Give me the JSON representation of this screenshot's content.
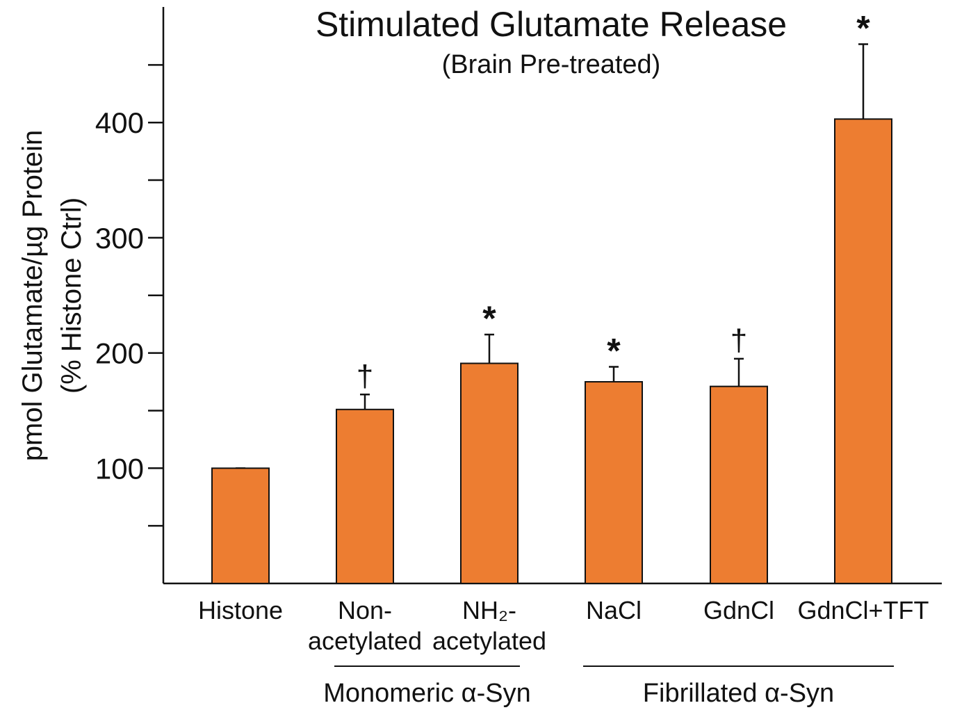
{
  "chart_data": {
    "type": "bar",
    "title": "Stimulated Glutamate Release",
    "subtitle": "(Brain Pre-treated)",
    "ylabel_line1": "pmol Glutamate/µg Protein",
    "ylabel_line2": "(% Histone Ctrl)",
    "ylim": [
      0,
      500
    ],
    "yticks_major": [
      100,
      200,
      300,
      400
    ],
    "yticks_minor": [
      50,
      150,
      250,
      350,
      450
    ],
    "categories": [
      {
        "lines": [
          "Histone"
        ]
      },
      {
        "lines": [
          "Non-",
          "acetylated"
        ]
      },
      {
        "lines": [
          "NH₂-",
          "acetylated"
        ]
      },
      {
        "lines": [
          "NaCl"
        ]
      },
      {
        "lines": [
          "GdnCl"
        ]
      },
      {
        "lines": [
          "GdnCl+TFT"
        ]
      }
    ],
    "values": [
      100,
      151,
      191,
      175,
      171,
      403
    ],
    "errors": [
      0,
      13,
      25,
      13,
      24,
      65
    ],
    "significance": [
      "",
      "†",
      "*",
      "*",
      "†",
      "*"
    ],
    "groups": [
      {
        "label": "Monomeric α-Syn",
        "from": 1,
        "to": 2
      },
      {
        "label": "Fibrillated α-Syn",
        "from": 3,
        "to": 5
      }
    ],
    "bar_color": "#ed7d31",
    "grid": false
  }
}
